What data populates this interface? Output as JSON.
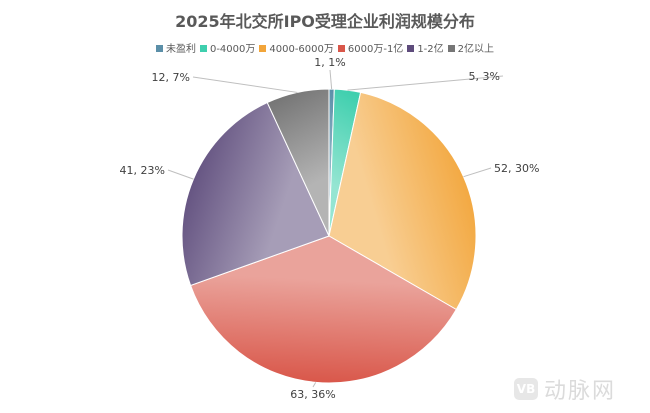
{
  "chart_data": {
    "type": "pie",
    "title": "2025年北交所IPO受理企业利润规模分布",
    "legend_position": "top",
    "categories": [
      "未盈利",
      "0-4000万",
      "4000-6000万",
      "6000万-1亿",
      "1-2亿",
      "2亿以上"
    ],
    "values": [
      1,
      5,
      52,
      63,
      41,
      12
    ],
    "data_labels": [
      "1, 1%",
      "5, 3%",
      "52, 30%",
      "63, 36%",
      "41, 23%",
      "12, 7%"
    ],
    "colors": [
      "#5b8fa8",
      "#3fcfae",
      "#f2a53a",
      "#d9574a",
      "#5e4c7c",
      "#767676"
    ],
    "start_angle": "top, clockwise"
  },
  "watermark": {
    "logo_text": "动脉网",
    "mark": "VB"
  }
}
